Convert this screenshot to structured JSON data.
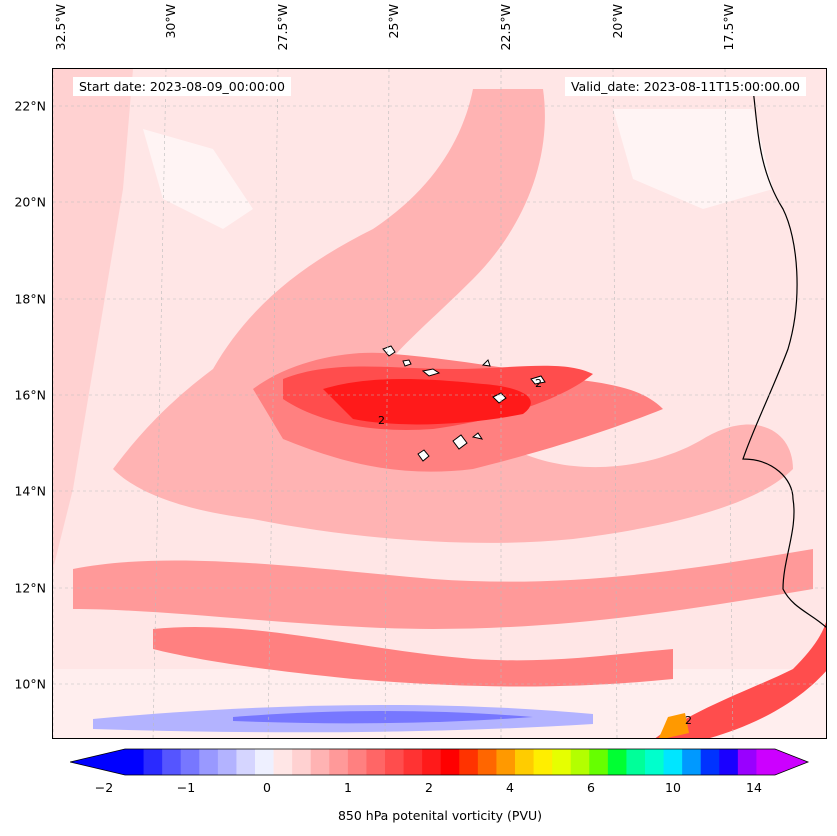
{
  "header": {
    "start_date": "Start date: 2023-08-09_00:00:00",
    "valid_date": "Valid_date: 2023-08-11T15:00:00.00"
  },
  "map": {
    "latitude_labels": [
      "22°N",
      "20°N",
      "18°N",
      "16°N",
      "14°N",
      "12°N",
      "10°N"
    ],
    "longitude_labels": [
      "32.5°W",
      "30°W",
      "27.5°W",
      "25°W",
      "22.5°W",
      "20°W",
      "17.5°W"
    ],
    "contour_labels": [
      "2",
      "2",
      "2"
    ],
    "field": "850 hPa potential vorticity shaded contours"
  },
  "colorbar": {
    "tick_labels": [
      "−2",
      "−1",
      "0",
      "1",
      "2",
      "4",
      "6",
      "10",
      "14"
    ],
    "label": "850 hPa potenital vorticity (PVU)",
    "colors": [
      "#0000ff",
      "#2a2aff",
      "#5555ff",
      "#7777ff",
      "#9999ff",
      "#b3b3ff",
      "#d5d5ff",
      "#eef0ff",
      "#ffe6e6",
      "#ffd1d1",
      "#ffb3b3",
      "#ff9999",
      "#ff8080",
      "#ff6666",
      "#ff4d4d",
      "#ff3333",
      "#ff1a1a",
      "#ff0000",
      "#ff3300",
      "#ff6600",
      "#ff9900",
      "#ffcc00",
      "#ffee00",
      "#e6ff00",
      "#b3ff00",
      "#66ff00",
      "#00ff33",
      "#00ff99",
      "#00ffcc",
      "#00e6ff",
      "#0099ff",
      "#0033ff",
      "#1a00ff",
      "#9900ff",
      "#cc00ff"
    ]
  }
}
